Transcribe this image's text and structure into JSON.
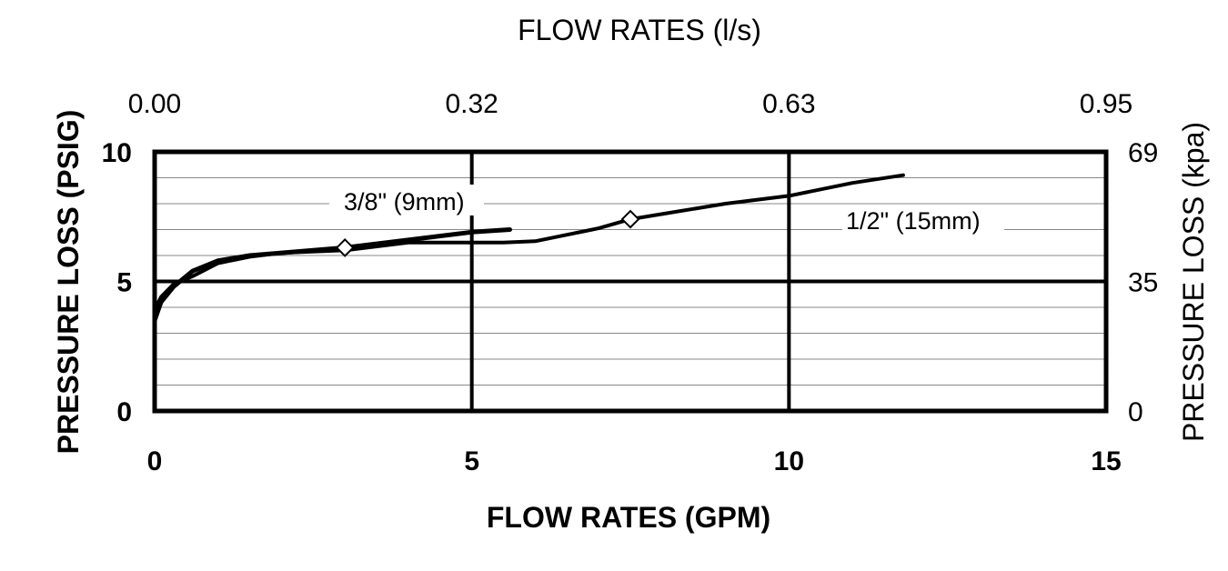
{
  "chart_data": {
    "type": "line",
    "xlabel": "FLOW RATES (GPM)",
    "ylabel": "PRESSURE LOSS (PSIG)",
    "x2label": "FLOW RATES (l/s)",
    "y2label": "PRESSURE LOSS (kpa)",
    "xlim": [
      0,
      15
    ],
    "ylim": [
      0,
      10
    ],
    "x_ticks": [
      "0",
      "5",
      "10",
      "15"
    ],
    "y_ticks": [
      "0",
      "5",
      "10"
    ],
    "x2_ticks": [
      "0.00",
      "0.32",
      "0.63",
      "0.95"
    ],
    "y2_ticks": [
      "0",
      "35",
      "69"
    ],
    "grid": true,
    "series": [
      {
        "name": "3/8\" (9mm)",
        "x": [
          0,
          0.1,
          0.3,
          0.6,
          1.0,
          1.5,
          2.0,
          3.0,
          4.0,
          5.0,
          5.6
        ],
        "y": [
          3.5,
          4.2,
          4.8,
          5.4,
          5.8,
          6.0,
          6.1,
          6.3,
          6.6,
          6.9,
          7.0
        ],
        "marker": {
          "x": 3.0,
          "y": 6.3
        }
      },
      {
        "name": "1/2\" (15mm)",
        "x": [
          0,
          0.1,
          0.3,
          0.6,
          1.0,
          1.5,
          2.0,
          3.0,
          4.0,
          5.0,
          5.5,
          6.0,
          7.0,
          7.5,
          8.0,
          9.0,
          10.0,
          11.0,
          11.8
        ],
        "y": [
          3.9,
          4.4,
          4.9,
          5.2,
          5.7,
          5.95,
          6.1,
          6.2,
          6.5,
          6.5,
          6.5,
          6.55,
          7.05,
          7.4,
          7.6,
          8.0,
          8.3,
          8.8,
          9.1
        ],
        "marker": {
          "x": 7.5,
          "y": 7.4
        }
      }
    ]
  }
}
